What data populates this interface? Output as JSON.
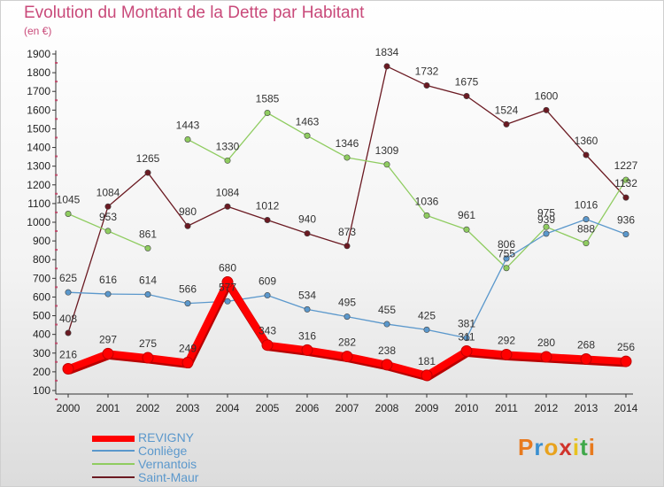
{
  "title": "Evolution du Montant de la Dette par Habitant",
  "subtitle": "(en €)",
  "logo": "Proxiti",
  "chart_data": {
    "type": "line",
    "x": [
      "2000",
      "2001",
      "2002",
      "2003",
      "2004",
      "2005",
      "2006",
      "2007",
      "2008",
      "2009",
      "2010",
      "2011",
      "2012",
      "2013",
      "2014"
    ],
    "ylim": [
      100,
      1900
    ],
    "yticks": [
      100,
      200,
      300,
      400,
      500,
      600,
      700,
      800,
      900,
      1000,
      1100,
      1200,
      1300,
      1400,
      1500,
      1600,
      1700,
      1800,
      1900
    ],
    "grid": false,
    "legend_position": "bottom-left",
    "series": [
      {
        "name": "Saint-Maur",
        "color": "#6b1a22",
        "values": [
          408,
          1084,
          1265,
          980,
          1084,
          1012,
          940,
          873,
          1834,
          1732,
          1675,
          1524,
          1600,
          1360,
          1132
        ]
      },
      {
        "name": "Vernantois",
        "color": "#8fcc60",
        "values": [
          1045,
          953,
          861,
          1443,
          1330,
          1585,
          1463,
          1346,
          1309,
          1036,
          961,
          755,
          975,
          888,
          1227
        ]
      },
      {
        "name": "Conliège",
        "color": "#5b98cc",
        "values": [
          625,
          616,
          614,
          566,
          577,
          609,
          534,
          495,
          455,
          425,
          381,
          806,
          939,
          1016,
          936
        ]
      },
      {
        "name": "REVIGNY",
        "color": "#ff0000",
        "values": [
          216,
          297,
          275,
          249,
          680,
          343,
          316,
          282,
          238,
          181,
          311,
          292,
          280,
          268,
          256
        ]
      }
    ],
    "point_labels": [
      [
        "408",
        "1084",
        "1265",
        "980",
        "1084",
        "1012",
        "940",
        "873",
        "1834",
        "1732",
        "1675",
        "1524",
        "1600",
        "1360",
        "1132"
      ],
      [
        "1045",
        "953",
        "861",
        "1443",
        "1330",
        "1585",
        "1463",
        "1346",
        "1309",
        "1036",
        "961",
        "755",
        "975",
        "888",
        "1227"
      ],
      [
        "625",
        "616",
        "614",
        "566",
        "577",
        "609",
        "534",
        "495",
        "455",
        "425",
        "381",
        "806",
        "939",
        "1016",
        "936"
      ],
      [
        "216",
        "297",
        "275",
        "249",
        "680",
        "343",
        "316",
        "282",
        "238",
        "181",
        "311",
        "292",
        "280",
        "268",
        "256"
      ]
    ]
  },
  "legend": [
    {
      "name": "REVIGNY",
      "color": "#ff0000",
      "thickness": "thick"
    },
    {
      "name": "Conliège",
      "color": "#5b98cc",
      "thickness": "thin"
    },
    {
      "name": "Vernantois",
      "color": "#8fcc60",
      "thickness": "thin"
    },
    {
      "name": "Saint-Maur",
      "color": "#6b1a22",
      "thickness": "thin"
    }
  ]
}
